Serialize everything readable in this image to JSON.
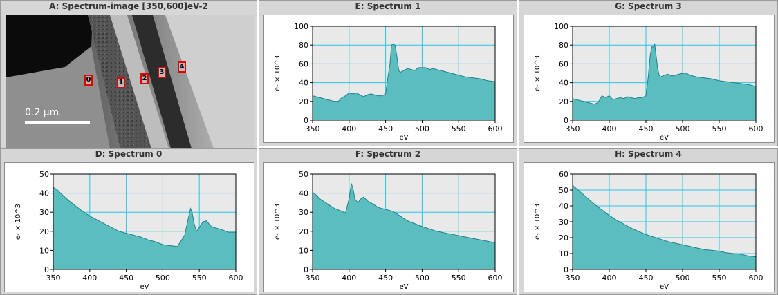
{
  "image_panel": {
    "title": "A: Spectrum-image [350,600]eV-2",
    "scale_bar_label": "0.2 µm",
    "markers": [
      "0",
      "1",
      "2",
      "3",
      "4"
    ]
  },
  "colors": {
    "fill": "#5bbdbd",
    "stroke": "#1e7f8c",
    "grid": "#26c6e6",
    "plot_bg": "#e9e9e9"
  },
  "chart_data": [
    {
      "type": "area",
      "title": "E: Spectrum 1",
      "xlabel": "eV",
      "ylabel": "e- × 10^3",
      "xlim": [
        350,
        600
      ],
      "ylim": [
        0,
        100
      ],
      "xticks": [
        350,
        400,
        450,
        500,
        550,
        600
      ],
      "yticks": [
        0,
        20,
        40,
        60,
        80,
        100
      ],
      "grid": true,
      "x": [
        350,
        360,
        370,
        380,
        385,
        390,
        395,
        400,
        405,
        410,
        415,
        420,
        425,
        430,
        435,
        440,
        445,
        450,
        453,
        456,
        458,
        460,
        463,
        466,
        468,
        470,
        475,
        480,
        485,
        490,
        495,
        500,
        505,
        510,
        515,
        520,
        530,
        540,
        550,
        560,
        570,
        580,
        590,
        600
      ],
      "y": [
        26,
        24,
        22,
        20,
        20,
        24,
        26,
        29,
        28,
        29,
        27,
        25,
        27,
        28,
        27,
        26,
        26,
        28,
        45,
        60,
        80,
        81,
        80,
        65,
        53,
        51,
        53,
        55,
        54,
        53,
        56,
        56,
        56,
        54,
        55,
        54,
        52,
        50,
        48,
        46,
        45,
        44,
        42,
        41
      ]
    },
    {
      "type": "area",
      "title": "G: Spectrum 3",
      "xlabel": "eV",
      "ylabel": "e- × 10^3",
      "xlim": [
        350,
        600
      ],
      "ylim": [
        0,
        100
      ],
      "xticks": [
        350,
        400,
        450,
        500,
        550,
        600
      ],
      "yticks": [
        0,
        20,
        40,
        60,
        80,
        100
      ],
      "grid": true,
      "x": [
        350,
        360,
        370,
        380,
        385,
        390,
        395,
        400,
        405,
        410,
        415,
        420,
        425,
        430,
        435,
        440,
        445,
        450,
        453,
        456,
        458,
        460,
        462,
        464,
        466,
        468,
        470,
        475,
        480,
        485,
        490,
        495,
        500,
        505,
        510,
        520,
        530,
        540,
        550,
        560,
        570,
        580,
        590,
        600
      ],
      "y": [
        23,
        21,
        19,
        17,
        19,
        26,
        24,
        26,
        22,
        23,
        24,
        23,
        25,
        24,
        23,
        24,
        24,
        26,
        45,
        70,
        78,
        78,
        81,
        68,
        55,
        48,
        46,
        48,
        49,
        47,
        48,
        49,
        50,
        50,
        48,
        46,
        45,
        44,
        42,
        41,
        40,
        39,
        38,
        36
      ]
    },
    {
      "type": "area",
      "title": "D: Spectrum 0",
      "xlabel": "eV",
      "ylabel": "e- × 10^3",
      "xlim": [
        350,
        600
      ],
      "ylim": [
        0,
        50
      ],
      "xticks": [
        350,
        400,
        450,
        500,
        550,
        600
      ],
      "yticks": [
        0,
        10,
        20,
        30,
        40,
        50
      ],
      "grid": true,
      "x": [
        350,
        355,
        360,
        370,
        380,
        390,
        400,
        410,
        420,
        430,
        440,
        450,
        460,
        470,
        480,
        490,
        500,
        510,
        520,
        530,
        535,
        538,
        540,
        543,
        546,
        550,
        555,
        560,
        565,
        570,
        580,
        590,
        600
      ],
      "y": [
        43,
        42,
        40,
        36.5,
        33.5,
        30.5,
        28,
        26,
        24,
        22,
        20,
        19,
        18,
        17,
        15.5,
        14.5,
        13,
        12.5,
        12,
        18,
        27,
        32,
        30,
        24,
        20,
        22,
        25,
        25.5,
        23,
        22,
        21,
        19.5,
        19.5
      ]
    },
    {
      "type": "area",
      "title": "F: Spectrum 2",
      "xlabel": "eV",
      "ylabel": "e- × 10^3",
      "xlim": [
        350,
        600
      ],
      "ylim": [
        0,
        50
      ],
      "xticks": [
        350,
        400,
        450,
        500,
        550,
        600
      ],
      "yticks": [
        0,
        10,
        20,
        30,
        40,
        50
      ],
      "grid": true,
      "x": [
        350,
        355,
        360,
        370,
        380,
        390,
        395,
        400,
        403,
        405,
        408,
        412,
        416,
        420,
        425,
        430,
        440,
        450,
        460,
        470,
        480,
        490,
        500,
        520,
        540,
        560,
        580,
        600
      ],
      "y": [
        40.5,
        39,
        37,
        34.5,
        32,
        30.5,
        29.5,
        37,
        45,
        43,
        37,
        35,
        37,
        38,
        36,
        35,
        32.5,
        31.5,
        30.5,
        28,
        25.5,
        24,
        22.5,
        20,
        18.5,
        17,
        15.5,
        14
      ]
    },
    {
      "type": "area",
      "title": "H: Spectrum 4",
      "xlabel": "eV",
      "ylabel": "e- × 10^3",
      "xlim": [
        350,
        600
      ],
      "ylim": [
        0,
        60
      ],
      "xticks": [
        350,
        400,
        450,
        500,
        550,
        600
      ],
      "yticks": [
        0,
        10,
        20,
        30,
        40,
        50,
        60
      ],
      "grid": true,
      "x": [
        350,
        355,
        360,
        370,
        380,
        390,
        400,
        410,
        420,
        430,
        440,
        450,
        460,
        470,
        480,
        490,
        500,
        510,
        520,
        530,
        540,
        550,
        560,
        570,
        580,
        590,
        600
      ],
      "y": [
        53,
        51,
        49,
        45,
        41,
        37.5,
        34,
        31,
        28.5,
        26,
        24,
        22,
        20.5,
        19,
        17.5,
        16.5,
        15.5,
        14.5,
        13.5,
        12.5,
        12,
        11.5,
        10.5,
        10,
        9.5,
        8.5,
        8
      ]
    }
  ]
}
